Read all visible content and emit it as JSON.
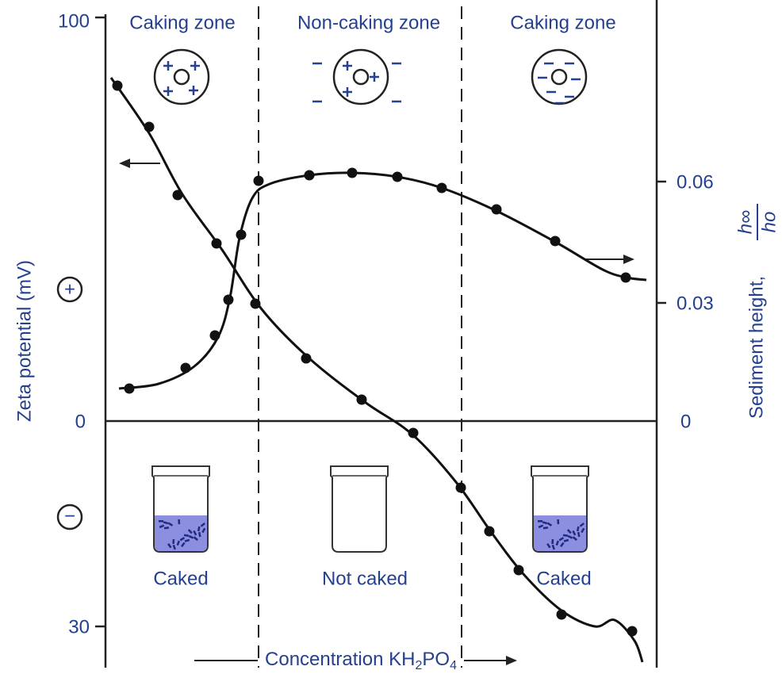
{
  "zones": [
    {
      "title": "Caking zone",
      "state": "Caked"
    },
    {
      "title": "Non-caking zone",
      "state": "Not caked"
    },
    {
      "title": "Caking zone",
      "state": "Caked"
    }
  ],
  "left_axis": {
    "title": "Zeta potential (mV)",
    "ticks": [
      "100",
      "0",
      "30"
    ],
    "positive": "+",
    "negative": "−"
  },
  "right_axis": {
    "title": "Sediment height,",
    "numerator": "h∞",
    "denominator": "ho",
    "ticks": [
      "0.06",
      "0.03",
      "0"
    ]
  },
  "x_axis": {
    "title": "Concentration KH",
    "sub1": "2",
    "mid": "PO",
    "sub2": "4"
  }
}
